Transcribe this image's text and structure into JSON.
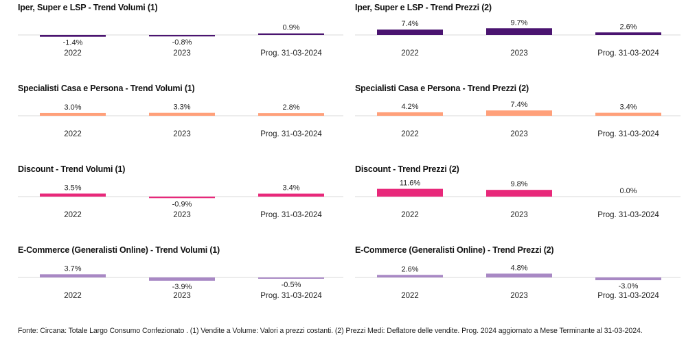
{
  "chart_data": [
    {
      "type": "bar",
      "title": "Iper, Super e LSP - Trend Volumi (1)",
      "categories": [
        "2022",
        "2023",
        "Prog. 31-03-2024"
      ],
      "values": [
        -1.4,
        -0.8,
        0.9
      ],
      "labels": [
        "-1.4%",
        "-0.8%",
        "0.9%"
      ],
      "color": "#4a1470"
    },
    {
      "type": "bar",
      "title": "Iper, Super e LSP - Trend Prezzi (2)",
      "categories": [
        "2022",
        "2023",
        "Prog. 31-03-2024"
      ],
      "values": [
        7.4,
        9.7,
        2.6
      ],
      "labels": [
        "7.4%",
        "9.7%",
        "2.6%"
      ],
      "color": "#4a1470"
    },
    {
      "type": "bar",
      "title": "Specialisti Casa e Persona - Trend Volumi (1)",
      "categories": [
        "2022",
        "2023",
        "Prog. 31-03-2024"
      ],
      "values": [
        3.0,
        3.3,
        2.8
      ],
      "labels": [
        "3.0%",
        "3.3%",
        "2.8%"
      ],
      "color": "#ffa07a"
    },
    {
      "type": "bar",
      "title": "Specialisti Casa e Persona - Trend Prezzi (2)",
      "categories": [
        "2022",
        "2023",
        "Prog. 31-03-2024"
      ],
      "values": [
        4.2,
        7.4,
        3.4
      ],
      "labels": [
        "4.2%",
        "7.4%",
        "3.4%"
      ],
      "color": "#ffa07a"
    },
    {
      "type": "bar",
      "title": "Discount - Trend Volumi (1)",
      "categories": [
        "2022",
        "2023",
        "Prog. 31-03-2024"
      ],
      "values": [
        3.5,
        -0.9,
        3.4
      ],
      "labels": [
        "3.5%",
        "-0.9%",
        "3.4%"
      ],
      "color": "#e8287a"
    },
    {
      "type": "bar",
      "title": "Discount - Trend Prezzi (2)",
      "categories": [
        "2022",
        "2023",
        "Prog. 31-03-2024"
      ],
      "values": [
        11.6,
        9.8,
        0.0
      ],
      "labels": [
        "11.6%",
        "9.8%",
        "0.0%"
      ],
      "color": "#e8287a"
    },
    {
      "type": "bar",
      "title": "E-Commerce (Generalisti Online) - Trend Volumi (1)",
      "categories": [
        "2022",
        "2023",
        "Prog. 31-03-2024"
      ],
      "values": [
        3.7,
        -3.9,
        -0.5
      ],
      "labels": [
        "3.7%",
        "-3.9%",
        "-0.5%"
      ],
      "color": "#a888c4"
    },
    {
      "type": "bar",
      "title": "E-Commerce (Generalisti Online) - Trend Prezzi (2)",
      "categories": [
        "2022",
        "2023",
        "Prog. 31-03-2024"
      ],
      "values": [
        2.6,
        4.8,
        -3.0
      ],
      "labels": [
        "2.6%",
        "4.8%",
        "-3.0%"
      ],
      "color": "#a888c4"
    }
  ],
  "footnote": "Fonte: Circana: Totale Largo Consumo Confezionato . (1) Vendite a Volume: Valori a prezzi costanti. (2) Prezzi Medi: Deflatore delle vendite. Prog. 2024 aggiornato a Mese Terminante al 31-03-2024."
}
